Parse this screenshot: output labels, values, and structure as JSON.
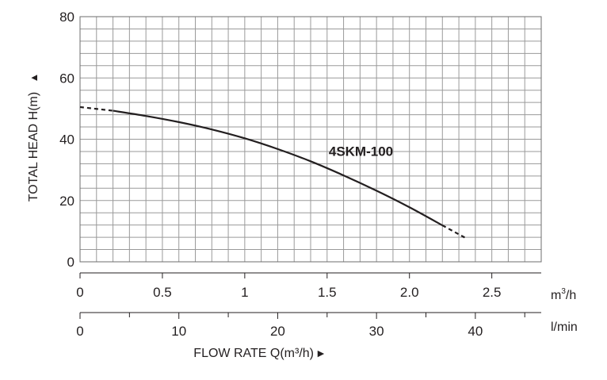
{
  "chart_data": {
    "type": "line",
    "title": "",
    "ylabel": "TOTAL HEAD H(m)",
    "ylabel_arrow": "▲",
    "xlabel": "FLOW RATE Q(m³/h)",
    "xlabel_arrow": "►",
    "ylim": [
      0,
      80
    ],
    "xlim": [
      0,
      2.8
    ],
    "yticks": [
      "0",
      "20",
      "40",
      "60",
      "80"
    ],
    "xticks_primary": {
      "unit": "m³/h",
      "unit_base": "m",
      "unit_sup": "3",
      "unit_tail": "/h",
      "labels": [
        "0",
        "0.5",
        "1",
        "1.5",
        "2.0",
        "2.5"
      ],
      "values": [
        0,
        0.5,
        1,
        1.5,
        2.0,
        2.5
      ]
    },
    "xticks_secondary": {
      "unit": "l/min",
      "labels": [
        "0",
        "10",
        "20",
        "30",
        "40"
      ],
      "values": [
        0,
        10,
        20,
        30,
        40
      ]
    },
    "grid": true,
    "series": [
      {
        "name": "4SKM-100",
        "color": "#231f20",
        "x": [
          0,
          0.2,
          0.4,
          0.6,
          0.8,
          1.0,
          1.2,
          1.4,
          1.6,
          1.8,
          2.0,
          2.2,
          2.35
        ],
        "y": [
          50.5,
          49.3,
          47.6,
          45.6,
          43.2,
          40.3,
          36.8,
          32.8,
          28.2,
          23.2,
          17.8,
          11.9,
          7.5
        ],
        "dashed_before": 0.2,
        "dashed_after": 2.2
      }
    ]
  }
}
